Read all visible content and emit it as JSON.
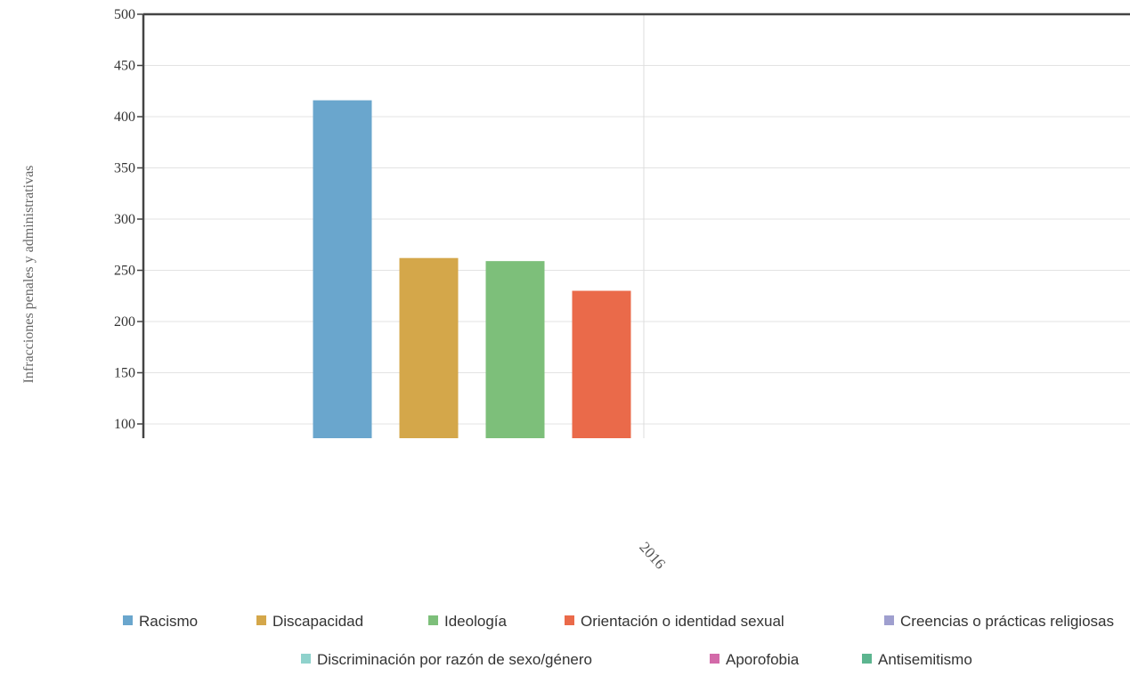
{
  "chart_data": {
    "type": "bar",
    "ylabel": "Infracciones penales y administrativas",
    "categories": [
      "2016"
    ],
    "ylim": [
      100,
      500
    ],
    "yticks": [
      100,
      150,
      200,
      250,
      300,
      350,
      400,
      450,
      500
    ],
    "grid": true,
    "legend_position": "bottom",
    "series": [
      {
        "name": "Racismo",
        "values": [
          416
        ],
        "color": "#6aa6cd"
      },
      {
        "name": "Discapacidad",
        "values": [
          262
        ],
        "color": "#d4a74a"
      },
      {
        "name": "Ideología",
        "values": [
          259
        ],
        "color": "#7dbf7a"
      },
      {
        "name": "Orientación o identidad sexual",
        "values": [
          230
        ],
        "color": "#ea6a4a"
      },
      {
        "name": "Creencias o prácticas religiosas",
        "values": [
          null
        ],
        "color": "#9f9fcf"
      },
      {
        "name": "Discriminación por razón de sexo/género",
        "values": [
          null
        ],
        "color": "#8fd2cc"
      },
      {
        "name": "Aporofobia",
        "values": [
          null
        ],
        "color": "#d36aa9"
      },
      {
        "name": "Antisemitismo",
        "values": [
          null
        ],
        "color": "#5cb58f"
      }
    ]
  }
}
